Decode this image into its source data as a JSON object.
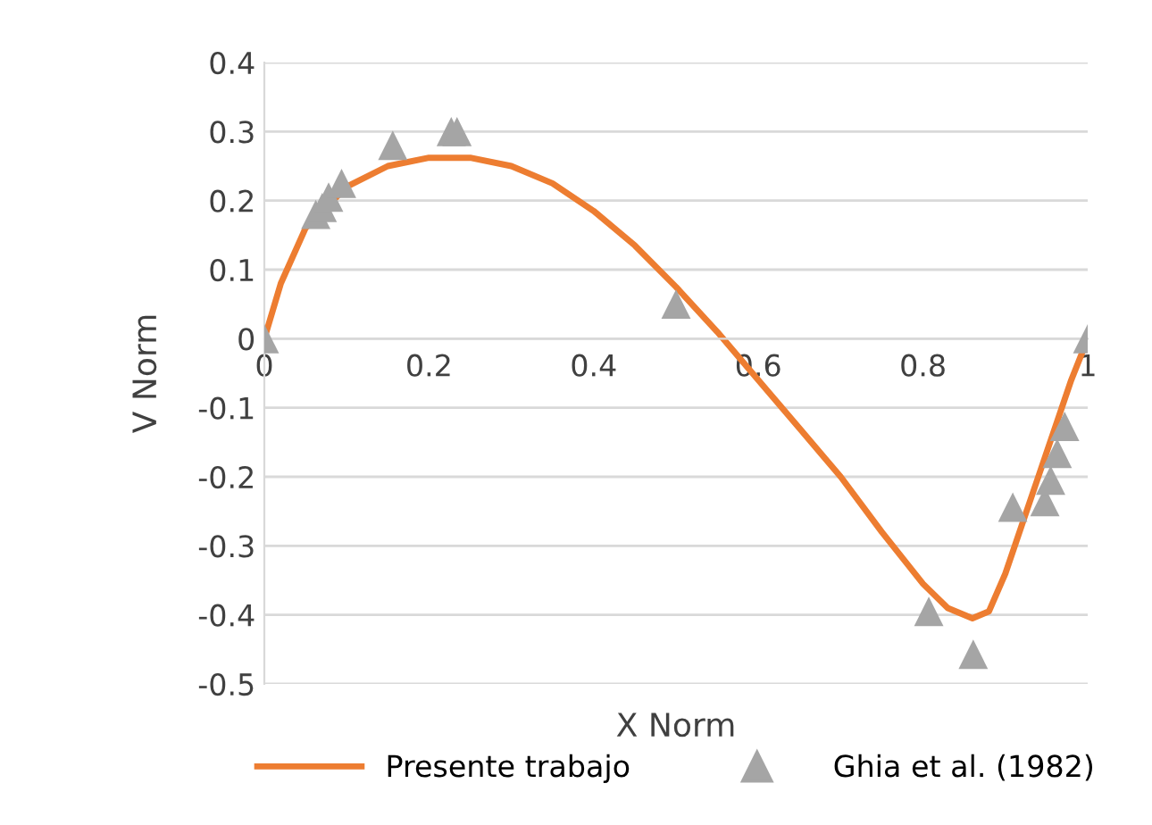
{
  "chart_data": {
    "type": "line",
    "xlabel": "X Norm",
    "ylabel": "V Norm",
    "xlim": [
      0,
      1
    ],
    "xticks": [
      0,
      0.2,
      0.4,
      0.6,
      0.8,
      1
    ],
    "ylim": [
      -0.5,
      0.4
    ],
    "yticks": [
      -0.5,
      -0.4,
      -0.3,
      -0.2,
      -0.1,
      0,
      0.1,
      0.2,
      0.3,
      0.4
    ],
    "grid": "y",
    "legend": "bottom",
    "series": [
      {
        "name": "Presente trabajo",
        "color": "#ed7d31",
        "marker": "none",
        "line_style": "solid",
        "x": [
          0,
          0.02,
          0.05,
          0.1,
          0.15,
          0.2,
          0.25,
          0.3,
          0.35,
          0.4,
          0.45,
          0.5,
          0.55,
          0.6,
          0.65,
          0.7,
          0.75,
          0.8,
          0.83,
          0.86,
          0.88,
          0.9,
          0.92,
          0.94,
          0.96,
          0.98,
          1.0
        ],
        "values": [
          0,
          0.08,
          0.16,
          0.22,
          0.25,
          0.262,
          0.262,
          0.25,
          0.225,
          0.185,
          0.135,
          0.075,
          0.01,
          -0.06,
          -0.13,
          -0.2,
          -0.28,
          -0.355,
          -0.39,
          -0.405,
          -0.395,
          -0.34,
          -0.27,
          -0.2,
          -0.13,
          -0.06,
          0
        ]
      },
      {
        "name": "Ghia et al. (1982)",
        "type": "scatter",
        "color": "#a5a5a5",
        "marker": "triangle",
        "x": [
          0,
          0.0625,
          0.0703,
          0.0781,
          0.0938,
          0.156,
          0.227,
          0.234,
          0.5,
          0.807,
          0.861,
          0.909,
          0.948,
          0.955,
          0.963,
          0.972,
          1.0
        ],
        "values": [
          0,
          0.18,
          0.19,
          0.205,
          0.225,
          0.28,
          0.3,
          0.3,
          0.05,
          -0.395,
          -0.457,
          -0.244,
          -0.236,
          -0.205,
          -0.166,
          -0.127,
          0
        ]
      }
    ]
  }
}
